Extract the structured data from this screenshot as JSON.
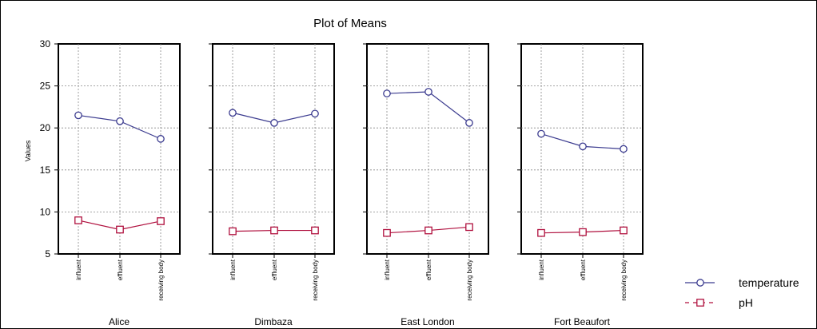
{
  "chart_data": {
    "type": "line",
    "title": "Plot of Means",
    "ylabel": "Values",
    "ylim": [
      5,
      30
    ],
    "yticks": [
      5,
      10,
      15,
      20,
      25,
      30
    ],
    "grid": true,
    "legend_position": "bottom-right",
    "categories": [
      "influent",
      "effluent",
      "receiving body"
    ],
    "panels": [
      {
        "name": "Alice",
        "series": [
          {
            "name": "temperature",
            "values": [
              21.5,
              20.8,
              18.7
            ]
          },
          {
            "name": "pH",
            "values": [
              9.0,
              7.9,
              8.9
            ]
          }
        ]
      },
      {
        "name": "Dimbaza",
        "series": [
          {
            "name": "temperature",
            "values": [
              21.8,
              20.6,
              21.7
            ]
          },
          {
            "name": "pH",
            "values": [
              7.7,
              7.8,
              7.8
            ]
          }
        ]
      },
      {
        "name": "East London",
        "series": [
          {
            "name": "temperature",
            "values": [
              24.1,
              24.3,
              20.6
            ]
          },
          {
            "name": "pH",
            "values": [
              7.5,
              7.8,
              8.2
            ]
          }
        ]
      },
      {
        "name": "Fort Beaufort",
        "series": [
          {
            "name": "temperature",
            "values": [
              19.3,
              17.8,
              17.5
            ]
          },
          {
            "name": "pH",
            "values": [
              7.5,
              7.6,
              7.8
            ]
          }
        ]
      }
    ],
    "legend": [
      {
        "name": "temperature",
        "color": "#3b3b8f",
        "marker": "circle",
        "line": "solid"
      },
      {
        "name": "pH",
        "color": "#b0103e",
        "marker": "square",
        "line": "dashed"
      }
    ]
  }
}
